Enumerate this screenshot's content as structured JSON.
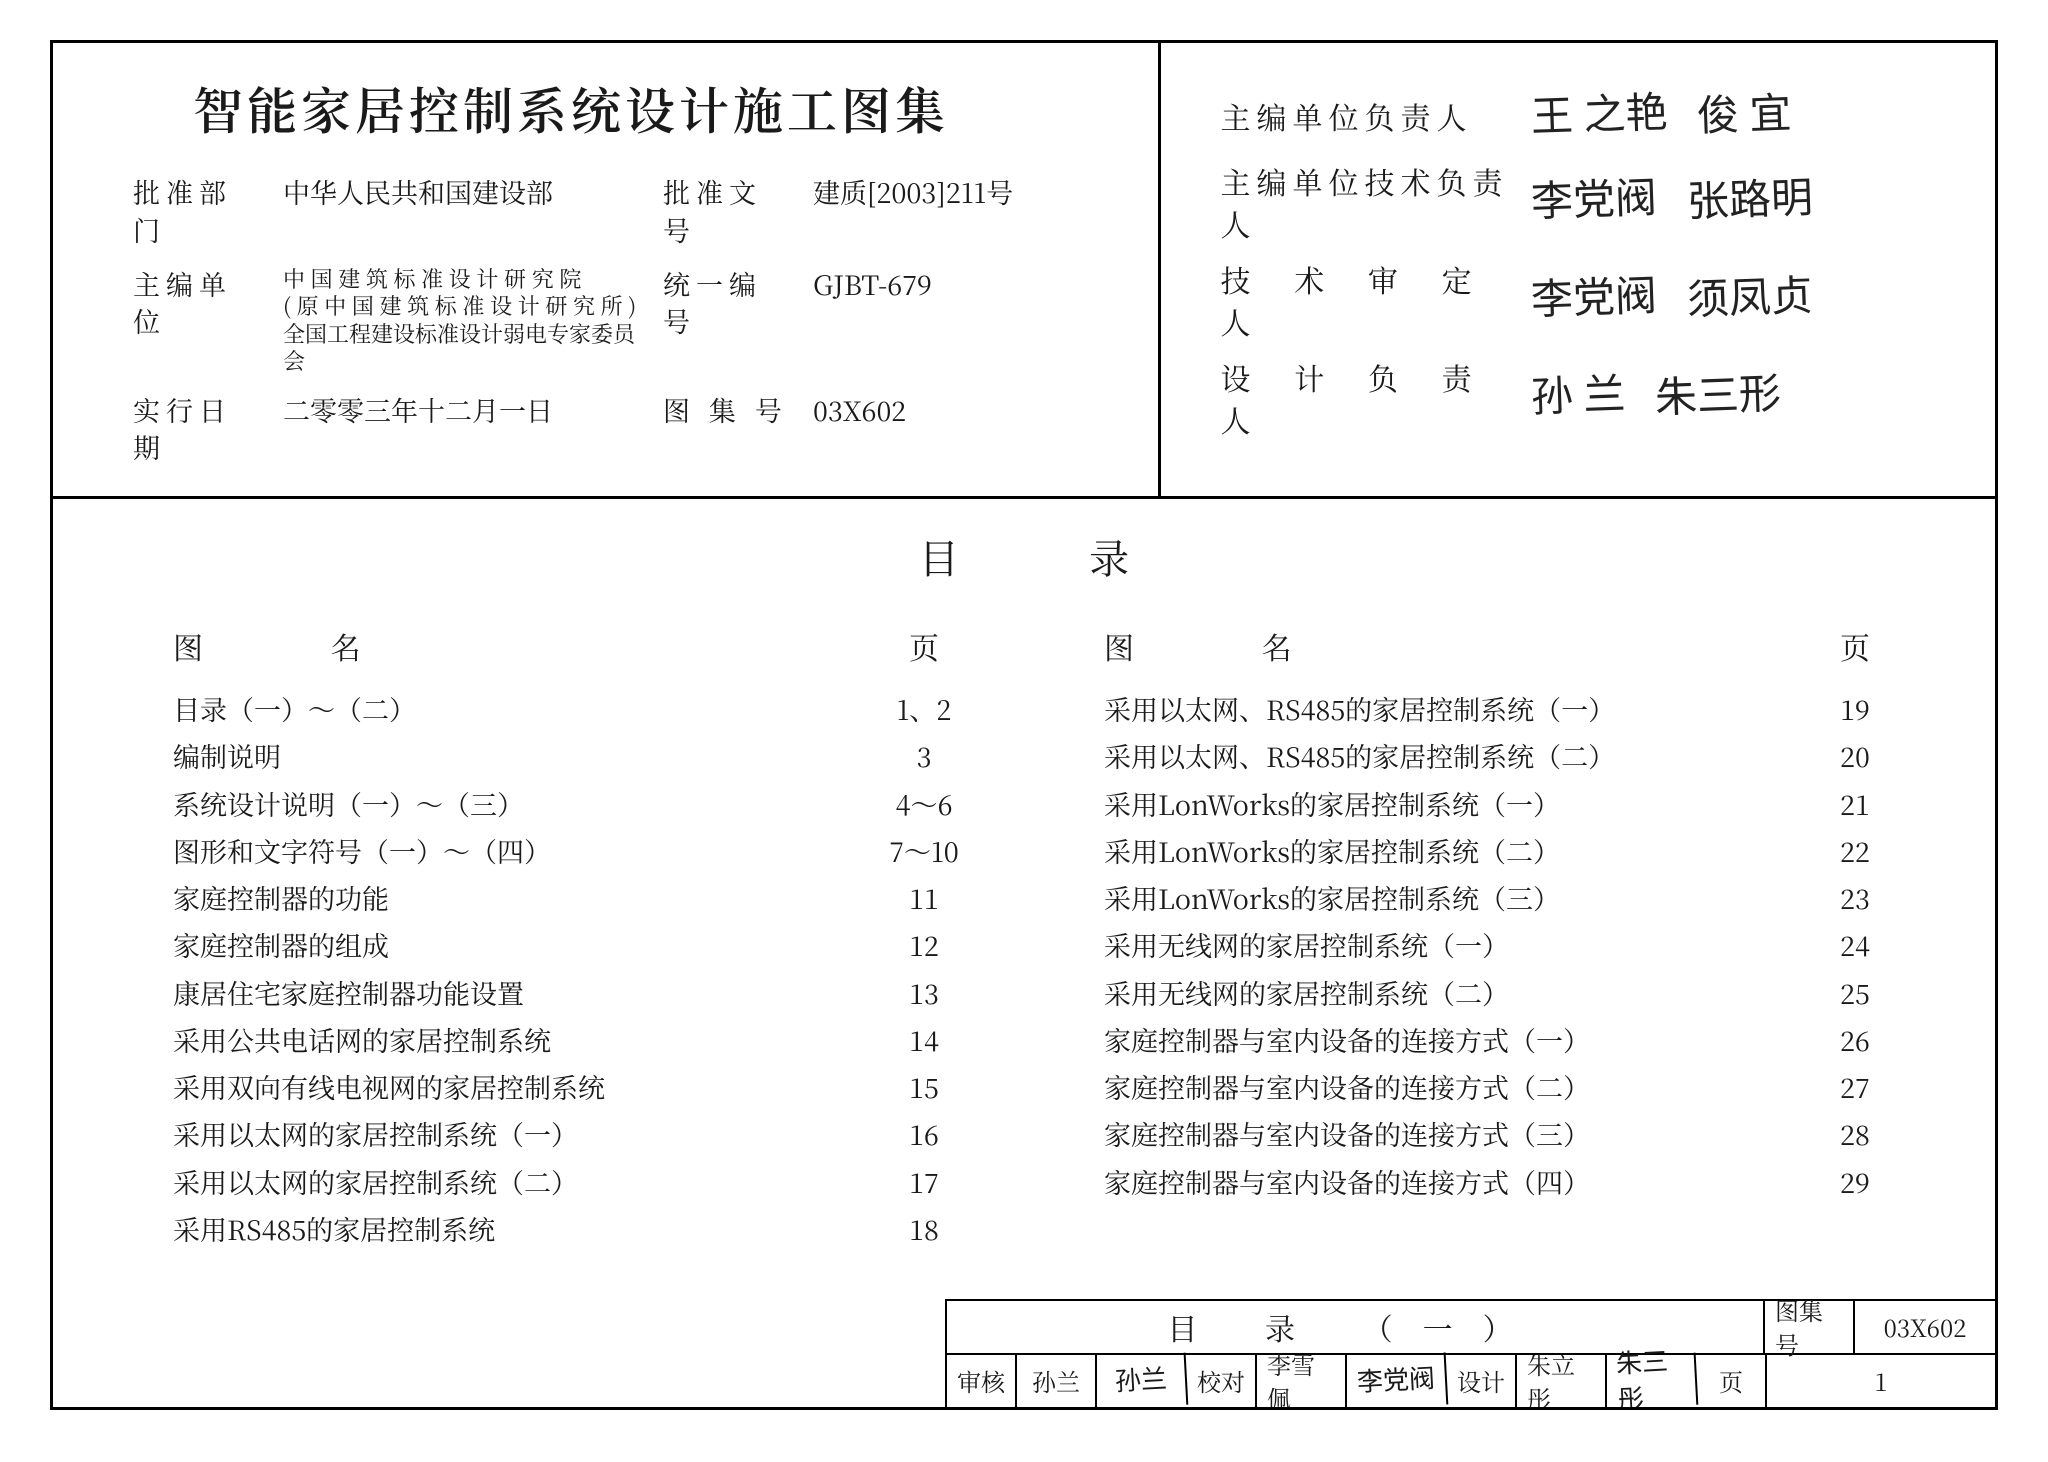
{
  "header": {
    "title": "智能家居控制系统设计施工图集",
    "approve_dept_label": "批准部门",
    "approve_dept": "中华人民共和国建设部",
    "editor_label": "主编单位",
    "editor": "中 国 建 筑 标 准 设 计 研 究 院\n( 原 中 国 建 筑 标 准 设 计 研 究 所 )\n全国工程建设标准设计弱电专家委员会",
    "effect_date_label": "实行日期",
    "effect_date": "二零零三年十二月一日",
    "approve_no_label": "批准文号",
    "approve_no": "建质[2003]211号",
    "uni_code_label": "统一编号",
    "uni_code": "GJBT-679",
    "album_no_label": "图 集 号",
    "album_no": "03X602",
    "sig1_label": "主编单位负责人",
    "sig1a": "王 之艳",
    "sig1b": "俊 宜",
    "sig2_label": "主编单位技术负责人",
    "sig2a": "李党阀",
    "sig2b": "张路明",
    "sig3_label": "技 术 审 定 人",
    "sig3a": "李党阀",
    "sig3b": "须凤贞",
    "sig4_label": "设 计 负 责 人",
    "sig4a": "孙 兰",
    "sig4b": "朱三形"
  },
  "toc": {
    "title": "目    录",
    "col_name": "图   名",
    "col_page": "页",
    "left": [
      {
        "name": "目录（一）～（二）",
        "page": "1、2"
      },
      {
        "name": "编制说明",
        "page": "3"
      },
      {
        "name": "系统设计说明（一）～（三）",
        "page": "4～6"
      },
      {
        "name": "图形和文字符号（一）～（四）",
        "page": "7～10"
      },
      {
        "name": "家庭控制器的功能",
        "page": "11"
      },
      {
        "name": "家庭控制器的组成",
        "page": "12"
      },
      {
        "name": "康居住宅家庭控制器功能设置",
        "page": "13"
      },
      {
        "name": "采用公共电话网的家居控制系统",
        "page": "14"
      },
      {
        "name": "采用双向有线电视网的家居控制系统",
        "page": "15"
      },
      {
        "name": "采用以太网的家居控制系统（一）",
        "page": "16"
      },
      {
        "name": "采用以太网的家居控制系统（二）",
        "page": "17"
      },
      {
        "name": "采用RS485的家居控制系统",
        "page": "18"
      }
    ],
    "right": [
      {
        "name": "采用以太网、RS485的家居控制系统（一）",
        "page": "19"
      },
      {
        "name": "采用以太网、RS485的家居控制系统（二）",
        "page": "20"
      },
      {
        "name": "采用LonWorks的家居控制系统（一）",
        "page": "21"
      },
      {
        "name": "采用LonWorks的家居控制系统（二）",
        "page": "22"
      },
      {
        "name": "采用LonWorks的家居控制系统（三）",
        "page": "23"
      },
      {
        "name": "采用无线网的家居控制系统（一）",
        "page": "24"
      },
      {
        "name": "采用无线网的家居控制系统（二）",
        "page": "25"
      },
      {
        "name": "家庭控制器与室内设备的连接方式（一）",
        "page": "26"
      },
      {
        "name": "家庭控制器与室内设备的连接方式（二）",
        "page": "27"
      },
      {
        "name": "家庭控制器与室内设备的连接方式（三）",
        "page": "28"
      },
      {
        "name": "家庭控制器与室内设备的连接方式（四）",
        "page": "29"
      }
    ]
  },
  "footer": {
    "doc_title": "目  录  （一）",
    "album_label": "图集号",
    "album_no": "03X602",
    "review_label": "审核",
    "review_name": "孙兰",
    "review_sig": "孙兰",
    "check_label": "校对",
    "check_name": "李雪佩",
    "check_sig": "李党阀",
    "design_label": "设计",
    "design_name": "朱立彤",
    "design_sig": "朱三彤",
    "page_label": "页",
    "page_no": "1"
  }
}
